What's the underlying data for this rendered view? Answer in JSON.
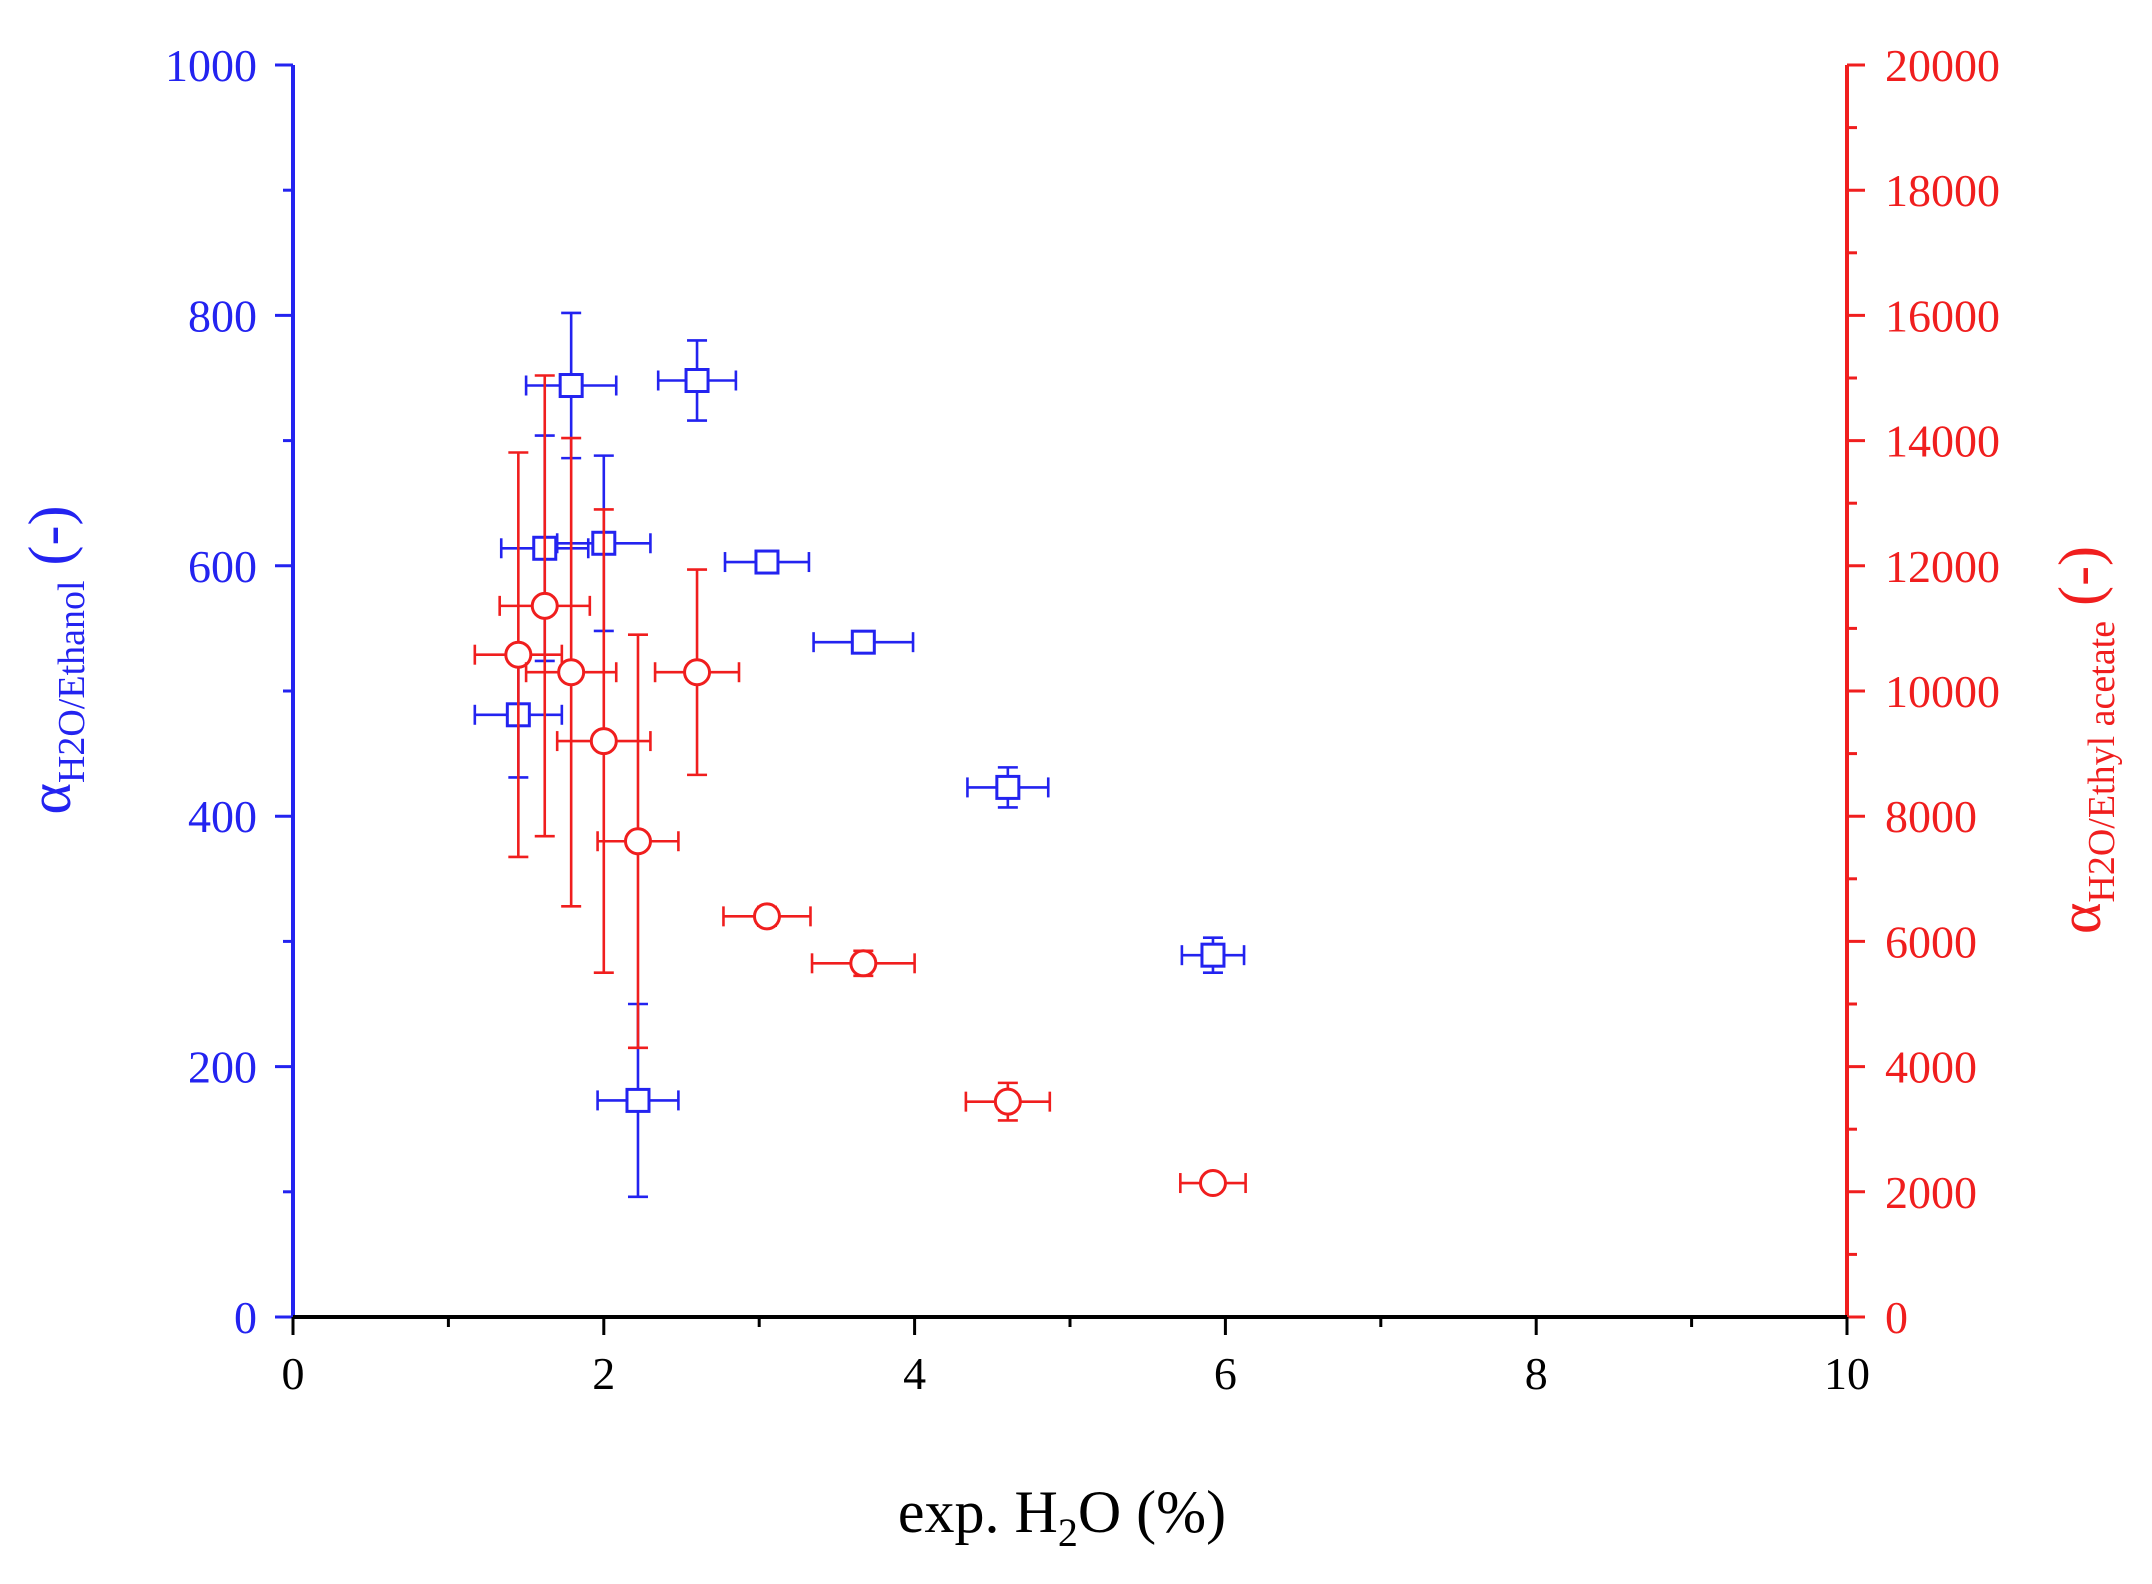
{
  "chart_data": {
    "type": "scatter",
    "xlabel": {
      "pre": "exp. H",
      "sub": "2",
      "post": "O (%)"
    },
    "xlim": [
      0,
      10
    ],
    "x_ticks": [
      "0",
      "2",
      "4",
      "6",
      "8",
      "10"
    ],
    "y_left": {
      "label": {
        "symbol": "α",
        "sub": "H2O/Ethanol",
        "post": " (-)"
      },
      "lim": [
        0,
        1000
      ],
      "ticks": [
        "0",
        "200",
        "400",
        "600",
        "800",
        "1000"
      ],
      "color": "#2323f0"
    },
    "y_right": {
      "label": {
        "symbol": "α",
        "sub": "H2O/Ethyl acetate",
        "post": " (-)"
      },
      "lim": [
        0,
        20000
      ],
      "ticks": [
        "0",
        "2000",
        "4000",
        "6000",
        "8000",
        "10000",
        "12000",
        "14000",
        "16000",
        "18000",
        "20000"
      ],
      "color": "#f01e1e"
    },
    "series": [
      {
        "name": "α H2O/Ethanol",
        "axis": "left",
        "marker": "square",
        "color": "#2323f0",
        "points": [
          {
            "x": 1.45,
            "y": 481,
            "xerr": 0.28,
            "yerr": 50
          },
          {
            "x": 1.62,
            "y": 614,
            "xerr": 0.28,
            "yerr": 90
          },
          {
            "x": 1.79,
            "y": 744,
            "xerr": 0.29,
            "yerr": 58
          },
          {
            "x": 2.0,
            "y": 618,
            "xerr": 0.3,
            "yerr": 70
          },
          {
            "x": 2.22,
            "y": 173,
            "xerr": 0.26,
            "yerr": 77
          },
          {
            "x": 2.6,
            "y": 748,
            "xerr": 0.25,
            "yerr": 32
          },
          {
            "x": 3.05,
            "y": 603,
            "xerr": 0.27,
            "yerr": 5
          },
          {
            "x": 3.67,
            "y": 539,
            "xerr": 0.32,
            "yerr": 5
          },
          {
            "x": 4.6,
            "y": 423,
            "xerr": 0.26,
            "yerr": 16
          },
          {
            "x": 5.92,
            "y": 289,
            "xerr": 0.2,
            "yerr": 14
          }
        ]
      },
      {
        "name": "α H2O/Ethyl acetate",
        "axis": "right",
        "marker": "circle",
        "color": "#f01e1e",
        "points": [
          {
            "x": 1.45,
            "y": 10580,
            "xerr": 0.28,
            "yerr": 3230
          },
          {
            "x": 1.62,
            "y": 11360,
            "xerr": 0.29,
            "yerr": 3680
          },
          {
            "x": 1.79,
            "y": 10300,
            "xerr": 0.29,
            "yerr": 3740
          },
          {
            "x": 2.0,
            "y": 9200,
            "xerr": 0.3,
            "yerr": 3700
          },
          {
            "x": 2.22,
            "y": 7600,
            "xerr": 0.26,
            "yerr": 3300
          },
          {
            "x": 2.6,
            "y": 10300,
            "xerr": 0.27,
            "yerr": 1640
          },
          {
            "x": 3.05,
            "y": 6400,
            "xerr": 0.28,
            "yerr": 150
          },
          {
            "x": 3.67,
            "y": 5650,
            "xerr": 0.33,
            "yerr": 200
          },
          {
            "x": 4.6,
            "y": 3440,
            "xerr": 0.27,
            "yerr": 300
          },
          {
            "x": 5.92,
            "y": 2140,
            "xerr": 0.21,
            "yerr": 80
          }
        ]
      }
    ]
  }
}
